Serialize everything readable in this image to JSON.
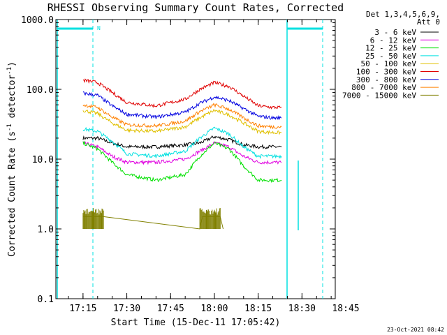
{
  "chart_data": {
    "type": "line",
    "title": "RHESSI Observing Summary Count Rates, Corrected",
    "xlabel": "Start Time (15-Dec-11 17:05:42)",
    "ylabel_main": "Corrected Count Rate (s",
    "ylabel_sup1": "-1",
    "ylabel_mid": " detector",
    "ylabel_sup2": "-1",
    "ylabel_end": ")",
    "y_scale": "log",
    "ylim": [
      0.1,
      1000
    ],
    "xlim_minutes": [
      5.7,
      101.4
    ],
    "x_ticks": [
      {
        "label": "17:15",
        "minutes": 15
      },
      {
        "label": "17:30",
        "minutes": 30
      },
      {
        "label": "17:45",
        "minutes": 45
      },
      {
        "label": "18:00",
        "minutes": 60
      },
      {
        "label": "18:15",
        "minutes": 75
      },
      {
        "label": "18:30",
        "minutes": 90
      },
      {
        "label": "18:45",
        "minutes": 105
      }
    ],
    "y_ticks": [
      {
        "label": "1000.0",
        "value": 1000
      },
      {
        "label": "100.0",
        "value": 100
      },
      {
        "label": "10.0",
        "value": 10
      },
      {
        "label": "1.0",
        "value": 1
      },
      {
        "label": "0.1",
        "value": 0.1
      }
    ],
    "legend_header": [
      "Det 1,3,4,5,6,9,",
      "Att 0"
    ],
    "legend_position": "right",
    "series": [
      {
        "name": "3 - 6 keV",
        "color": "#000000",
        "points": [
          [
            15,
            20
          ],
          [
            20,
            20
          ],
          [
            25,
            17
          ],
          [
            30,
            15
          ],
          [
            40,
            15
          ],
          [
            50,
            16
          ],
          [
            55,
            17
          ],
          [
            60,
            21
          ],
          [
            65,
            19
          ],
          [
            70,
            16
          ],
          [
            75,
            15
          ],
          [
            80,
            15
          ],
          [
            83,
            15
          ]
        ]
      },
      {
        "name": "6 - 12 keV",
        "color": "#e000e0",
        "points": [
          [
            15,
            17
          ],
          [
            20,
            15
          ],
          [
            25,
            11
          ],
          [
            30,
            9
          ],
          [
            40,
            9
          ],
          [
            50,
            10
          ],
          [
            55,
            13
          ],
          [
            60,
            17
          ],
          [
            65,
            15
          ],
          [
            70,
            11
          ],
          [
            75,
            9
          ],
          [
            80,
            9
          ],
          [
            83,
            9
          ]
        ]
      },
      {
        "name": "12 - 25 keV",
        "color": "#00e000",
        "points": [
          [
            15,
            17
          ],
          [
            20,
            14
          ],
          [
            25,
            9
          ],
          [
            30,
            6
          ],
          [
            40,
            5
          ],
          [
            50,
            6
          ],
          [
            55,
            11
          ],
          [
            60,
            17
          ],
          [
            65,
            14
          ],
          [
            70,
            8
          ],
          [
            75,
            5
          ],
          [
            80,
            5
          ],
          [
            83,
            5
          ]
        ]
      },
      {
        "name": "25 - 50 keV",
        "color": "#00e0e0",
        "points": [
          [
            15,
            27
          ],
          [
            20,
            25
          ],
          [
            25,
            18
          ],
          [
            30,
            12
          ],
          [
            40,
            11
          ],
          [
            50,
            13
          ],
          [
            55,
            20
          ],
          [
            60,
            28
          ],
          [
            65,
            23
          ],
          [
            70,
            15
          ],
          [
            75,
            11
          ],
          [
            80,
            11
          ],
          [
            83,
            11
          ]
        ]
      },
      {
        "name": "50 - 100 keV",
        "color": "#e0c000",
        "points": [
          [
            15,
            50
          ],
          [
            20,
            45
          ],
          [
            25,
            33
          ],
          [
            30,
            26
          ],
          [
            40,
            25
          ],
          [
            50,
            29
          ],
          [
            55,
            39
          ],
          [
            60,
            50
          ],
          [
            65,
            43
          ],
          [
            70,
            33
          ],
          [
            75,
            25
          ],
          [
            80,
            24
          ],
          [
            83,
            24
          ]
        ]
      },
      {
        "name": "100 - 300 keV",
        "color": "#e00000",
        "points": [
          [
            15,
            135
          ],
          [
            20,
            125
          ],
          [
            25,
            90
          ],
          [
            30,
            65
          ],
          [
            40,
            58
          ],
          [
            50,
            72
          ],
          [
            55,
            100
          ],
          [
            60,
            125
          ],
          [
            65,
            110
          ],
          [
            70,
            80
          ],
          [
            75,
            58
          ],
          [
            80,
            55
          ],
          [
            83,
            55
          ]
        ]
      },
      {
        "name": "300 - 800 keV",
        "color": "#0000e0",
        "points": [
          [
            15,
            88
          ],
          [
            20,
            82
          ],
          [
            25,
            58
          ],
          [
            30,
            44
          ],
          [
            40,
            40
          ],
          [
            50,
            47
          ],
          [
            55,
            63
          ],
          [
            60,
            78
          ],
          [
            65,
            69
          ],
          [
            70,
            53
          ],
          [
            75,
            41
          ],
          [
            80,
            39
          ],
          [
            83,
            39
          ]
        ]
      },
      {
        "name": "800 - 7000 keV",
        "color": "#ff8000",
        "points": [
          [
            15,
            60
          ],
          [
            20,
            55
          ],
          [
            25,
            40
          ],
          [
            30,
            31
          ],
          [
            40,
            30
          ],
          [
            50,
            35
          ],
          [
            55,
            48
          ],
          [
            60,
            60
          ],
          [
            65,
            52
          ],
          [
            70,
            39
          ],
          [
            75,
            30
          ],
          [
            80,
            29
          ],
          [
            83,
            29
          ]
        ]
      },
      {
        "name": "7000 - 15000 keV",
        "color": "#808000",
        "points": [
          [
            15,
            1.5
          ],
          [
            22,
            1.5
          ],
          [
            55,
            1.0
          ],
          [
            56,
            1.5
          ],
          [
            62,
            1.5
          ],
          [
            63,
            1.0
          ]
        ]
      }
    ],
    "annotations": [
      "N"
    ],
    "footer": "23-Oct-2021 08:42"
  }
}
